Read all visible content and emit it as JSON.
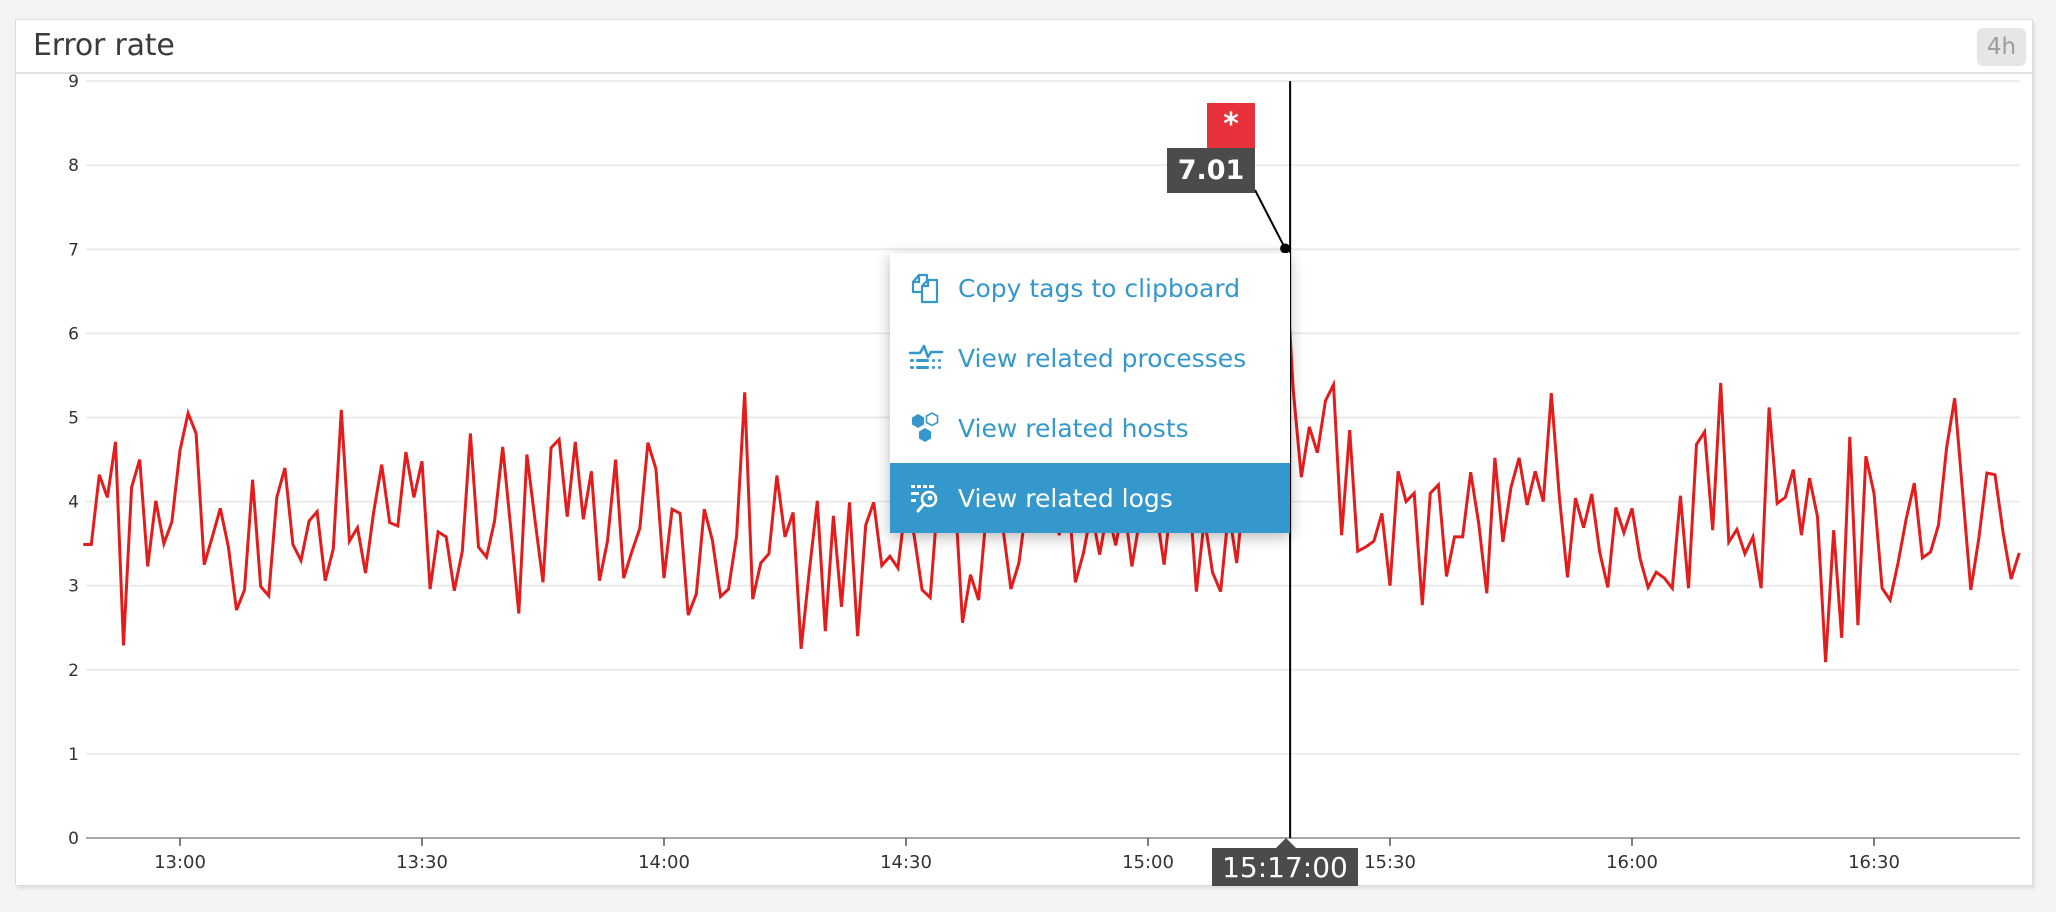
{
  "panel": {
    "title": "Error rate",
    "timeframe": "4h"
  },
  "hover": {
    "marker_symbol": "*",
    "value": "7.01",
    "time": "15:17:00"
  },
  "context_menu": {
    "items": [
      {
        "label": "Copy tags to clipboard",
        "icon": "copy-icon",
        "active": false
      },
      {
        "label": "View related processes",
        "icon": "processes-icon",
        "active": false
      },
      {
        "label": "View related hosts",
        "icon": "hosts-icon",
        "active": false
      },
      {
        "label": "View related logs",
        "icon": "logs-icon",
        "active": true
      }
    ]
  },
  "colors": {
    "series": "#e31c1c",
    "accent": "#3598cc",
    "marker": "#e8313a",
    "label_bg": "#4b4b4b",
    "grid": "#ebebeb"
  },
  "chart_data": {
    "type": "line",
    "title": "Error rate",
    "xlabel": "",
    "ylabel": "",
    "ylim": [
      0,
      9
    ],
    "yticks": [
      "0",
      "1",
      "2",
      "3",
      "4",
      "5",
      "6",
      "7",
      "8",
      "9"
    ],
    "xticks": [
      "13:00",
      "13:30",
      "14:00",
      "14:30",
      "15:00",
      "15:30",
      "16:00",
      "16:30"
    ],
    "x_start": "12:48",
    "x_end": "16:48",
    "x_step_minutes": 1,
    "grid": true,
    "legend": "none",
    "series": [
      {
        "name": "Error rate",
        "values": [
          3.49,
          3.49,
          4.32,
          4.05,
          4.71,
          2.29,
          4.17,
          4.5,
          3.23,
          4.01,
          3.5,
          3.76,
          4.61,
          5.05,
          4.81,
          3.25,
          3.58,
          3.92,
          3.46,
          2.71,
          2.95,
          4.26,
          2.99,
          2.88,
          4.05,
          4.4,
          3.49,
          3.3,
          3.77,
          3.88,
          3.06,
          3.44,
          5.09,
          3.53,
          3.69,
          3.15,
          3.87,
          4.44,
          3.75,
          3.71,
          4.59,
          4.05,
          4.48,
          2.96,
          3.64,
          3.58,
          2.94,
          3.41,
          4.81,
          3.46,
          3.34,
          3.77,
          4.65,
          3.69,
          2.67,
          4.56,
          3.79,
          3.04,
          4.64,
          4.74,
          3.82,
          4.71,
          3.79,
          4.36,
          3.06,
          3.53,
          4.5,
          3.09,
          3.4,
          3.68,
          4.7,
          4.39,
          3.09,
          3.91,
          3.86,
          2.65,
          2.9,
          3.91,
          3.54,
          2.87,
          2.96,
          3.59,
          5.3,
          2.84,
          3.27,
          3.38,
          4.31,
          3.58,
          3.87,
          2.25,
          3.16,
          4.01,
          2.46,
          3.83,
          2.75,
          3.99,
          2.4,
          3.72,
          3.99,
          3.24,
          3.35,
          3.21,
          4.0,
          3.6,
          2.95,
          2.86,
          4.1,
          3.9,
          4.2,
          2.56,
          3.13,
          2.83,
          3.9,
          4.3,
          3.7,
          2.96,
          3.27,
          4.0,
          4.4,
          3.8,
          4.1,
          3.6,
          4.2,
          3.04,
          3.39,
          3.9,
          3.37,
          3.9,
          3.48,
          4.0,
          3.23,
          3.8,
          4.2,
          3.9,
          3.25,
          4.1,
          3.7,
          4.3,
          2.93,
          3.8,
          3.16,
          2.93,
          3.9,
          3.27,
          4.2,
          3.8,
          4.5,
          4.9,
          5.6,
          7.01,
          5.33,
          4.29,
          4.89,
          4.58,
          5.2,
          5.39,
          3.6,
          4.85,
          3.41,
          3.46,
          3.53,
          3.86,
          3.0,
          4.36,
          4.0,
          4.1,
          2.77,
          4.1,
          4.2,
          3.11,
          3.58,
          3.58,
          4.35,
          3.74,
          2.91,
          4.52,
          3.52,
          4.17,
          4.52,
          3.96,
          4.36,
          4.0,
          5.29,
          4.05,
          3.1,
          4.04,
          3.69,
          4.09,
          3.4,
          2.98,
          3.93,
          3.63,
          3.92,
          3.32,
          2.98,
          3.16,
          3.09,
          2.97,
          4.07,
          2.97,
          4.68,
          4.83,
          3.66,
          5.41,
          3.52,
          3.67,
          3.38,
          3.58,
          2.97,
          5.12,
          3.98,
          4.05,
          4.38,
          3.6,
          4.28,
          3.82,
          2.09,
          3.66,
          2.38,
          4.77,
          2.53,
          4.54,
          4.1,
          2.97,
          2.83,
          3.28,
          3.8,
          4.22,
          3.33,
          3.4,
          3.72,
          4.64,
          5.23,
          4.1,
          2.95,
          3.57,
          4.34,
          4.32,
          3.63,
          3.08,
          3.39
        ]
      }
    ],
    "annotations": [
      {
        "type": "hover-crosshair",
        "x": "15:17:00",
        "y": 7.01,
        "marker": "*"
      }
    ]
  }
}
